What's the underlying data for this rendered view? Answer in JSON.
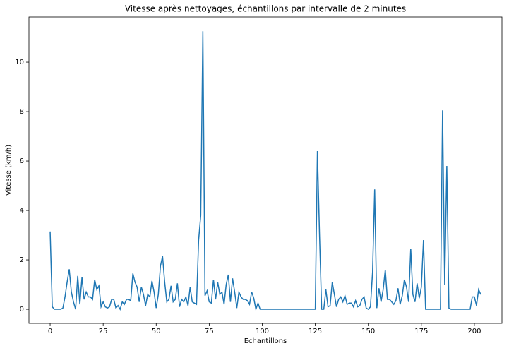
{
  "chart_data": {
    "type": "line",
    "title": "Vitesse après nettoyages, échantillons par intervalle de 2 minutes",
    "x_label": "Echantillons",
    "y_label": "Vitesse (km/h)",
    "x": [
      0,
      1,
      2,
      3,
      4,
      5,
      6,
      7,
      8,
      9,
      10,
      11,
      12,
      13,
      14,
      15,
      16,
      17,
      18,
      19,
      20,
      21,
      22,
      23,
      24,
      25,
      26,
      27,
      28,
      29,
      30,
      31,
      32,
      33,
      34,
      35,
      36,
      37,
      38,
      39,
      40,
      41,
      42,
      43,
      44,
      45,
      46,
      47,
      48,
      49,
      50,
      51,
      52,
      53,
      54,
      55,
      56,
      57,
      58,
      59,
      60,
      61,
      62,
      63,
      64,
      65,
      66,
      67,
      68,
      69,
      70,
      71,
      72,
      73,
      74,
      75,
      76,
      77,
      78,
      79,
      80,
      81,
      82,
      83,
      84,
      85,
      86,
      87,
      88,
      89,
      90,
      91,
      92,
      93,
      94,
      95,
      96,
      97,
      98,
      99,
      100,
      101,
      102,
      103,
      104,
      105,
      106,
      107,
      108,
      109,
      110,
      111,
      112,
      113,
      114,
      115,
      116,
      117,
      118,
      119,
      120,
      121,
      122,
      123,
      124,
      125,
      126,
      127,
      128,
      129,
      130,
      131,
      132,
      133,
      134,
      135,
      136,
      137,
      138,
      139,
      140,
      141,
      142,
      143,
      144,
      145,
      146,
      147,
      148,
      149,
      150,
      151,
      152,
      153,
      154,
      155,
      156,
      157,
      158,
      159,
      160,
      161,
      162,
      163,
      164,
      165,
      166,
      167,
      168,
      169,
      170,
      171,
      172,
      173,
      174,
      175,
      176,
      177,
      178,
      179,
      180,
      181,
      182,
      183,
      184,
      185,
      186,
      187,
      188,
      189,
      190,
      191,
      192,
      193,
      194,
      195,
      196,
      197,
      198,
      199,
      200,
      201,
      202,
      203
    ],
    "series": [
      {
        "name": "Vitesse",
        "color": "#1f77b4",
        "values": [
          3.15,
          0.1,
          0,
          0,
          0,
          0,
          0.05,
          0.5,
          1.1,
          1.62,
          0.7,
          0.3,
          0,
          1.35,
          0.2,
          1.3,
          0.4,
          0.7,
          0.5,
          0.5,
          0.4,
          1.2,
          0.8,
          0.95,
          0.1,
          0.3,
          0.1,
          0.05,
          0.1,
          0.4,
          0.4,
          0.05,
          0.15,
          0,
          0.3,
          0.2,
          0.4,
          0.4,
          0.35,
          1.45,
          1.1,
          0.9,
          0.3,
          0.9,
          0.6,
          0.15,
          0.6,
          0.5,
          1.15,
          0.7,
          0.05,
          0.6,
          1.75,
          2.15,
          1.1,
          0.3,
          0.4,
          0.95,
          0.3,
          0.4,
          1.05,
          0.1,
          0.4,
          0.3,
          0.5,
          0.15,
          0.9,
          0.3,
          0.25,
          0.2,
          2.8,
          3.8,
          11.25,
          0.55,
          0.75,
          0.3,
          0.25,
          1.2,
          0.4,
          1.1,
          0.6,
          0.7,
          0.2,
          1.0,
          1.4,
          0.3,
          1.25,
          0.7,
          0.05,
          0.7,
          0.5,
          0.4,
          0.4,
          0.35,
          0.2,
          0.7,
          0.45,
          0,
          0.25,
          0,
          0,
          0,
          0,
          0,
          0,
          0,
          0,
          0,
          0,
          0,
          0,
          0,
          0,
          0,
          0,
          0,
          0,
          0,
          0,
          0,
          0,
          0,
          0,
          0,
          0,
          0,
          6.4,
          3.0,
          0,
          0,
          0.8,
          0.1,
          0.15,
          1.1,
          0.6,
          0.1,
          0.4,
          0.5,
          0.3,
          0.55,
          0.2,
          0.25,
          0.25,
          0.1,
          0.35,
          0.1,
          0.15,
          0.4,
          0.5,
          0.05,
          0,
          0.1,
          1.5,
          4.85,
          0.05,
          0.85,
          0.3,
          0.8,
          1.6,
          0.4,
          0.4,
          0.3,
          0.2,
          0.35,
          0.85,
          0.2,
          0.55,
          1.2,
          0.9,
          0.3,
          2.45,
          0.6,
          0.3,
          1.05,
          0.45,
          0.9,
          2.8,
          0,
          0,
          0,
          0,
          0,
          0,
          0,
          0,
          8.05,
          1.0,
          5.8,
          0.05,
          0,
          0,
          0,
          0,
          0,
          0,
          0,
          0,
          0,
          0,
          0.5,
          0.5,
          0.15,
          0.8,
          0.6
        ]
      }
    ],
    "xlim": [
      -10,
      213
    ],
    "ylim": [
      -0.57,
      11.83
    ],
    "xticks": [
      0,
      25,
      50,
      75,
      100,
      125,
      150,
      175,
      200
    ],
    "yticks": [
      0,
      2,
      4,
      6,
      8,
      10
    ]
  }
}
